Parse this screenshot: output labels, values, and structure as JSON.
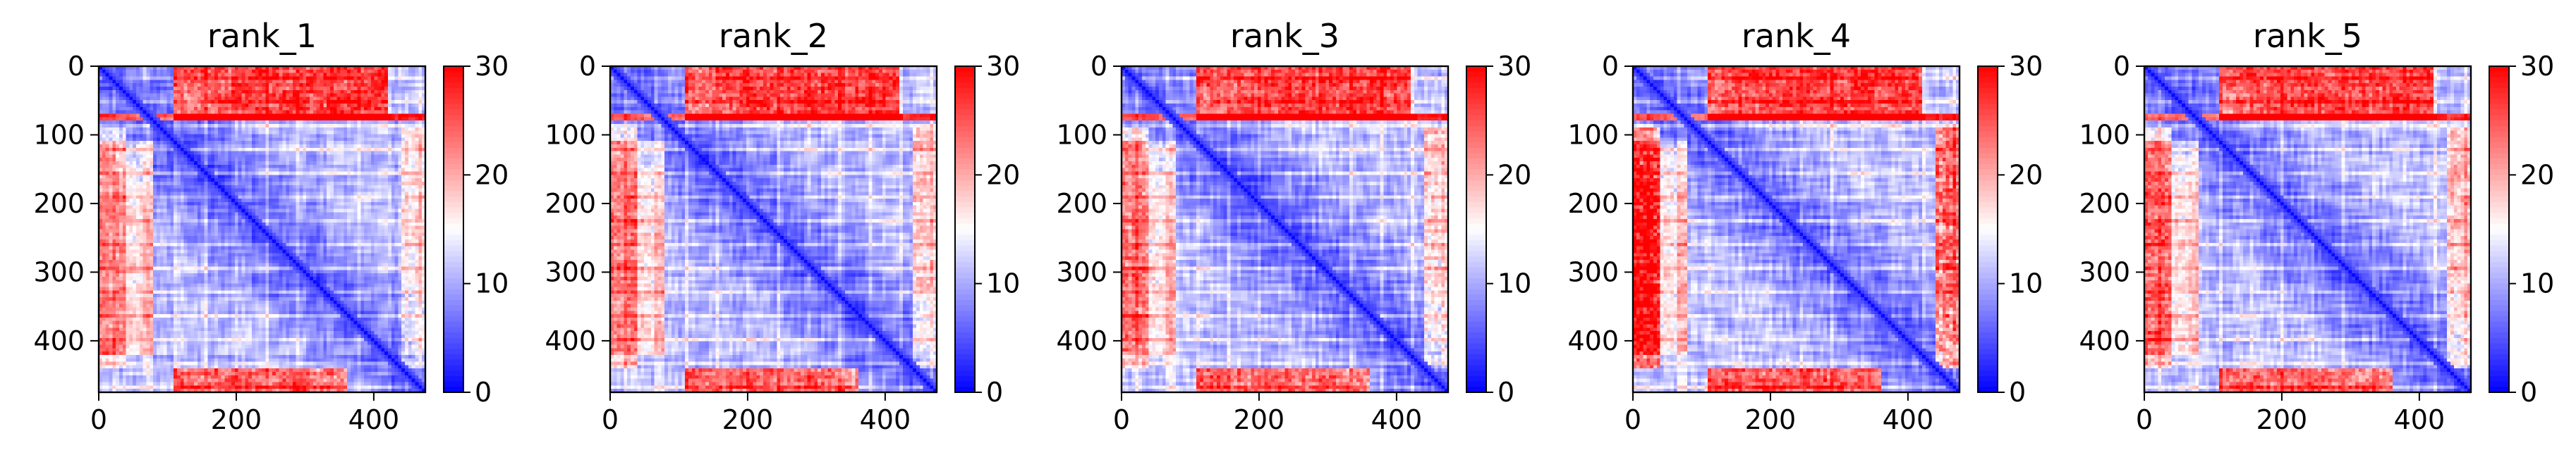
{
  "chart_data": [
    {
      "type": "heatmap",
      "title": "rank_1",
      "n": 475,
      "xlim": [
        0,
        475
      ],
      "ylim": [
        475,
        0
      ],
      "x_ticks": [
        0,
        200,
        400
      ],
      "y_ticks": [
        0,
        100,
        200,
        300,
        400
      ],
      "colorbar": {
        "vmin": 0,
        "vmax": 30,
        "ticks": [
          0,
          10,
          20,
          30
        ],
        "colormap": "bwr"
      },
      "pattern": {
        "terminal_block": [
          0,
          78
        ],
        "high_row_band": 75,
        "bottom_band": [
          440,
          475
        ],
        "side_strength": 0.25
      }
    },
    {
      "type": "heatmap",
      "title": "rank_2",
      "n": 475,
      "xlim": [
        0,
        475
      ],
      "ylim": [
        475,
        0
      ],
      "x_ticks": [
        0,
        200,
        400
      ],
      "y_ticks": [
        0,
        100,
        200,
        300,
        400
      ],
      "colorbar": {
        "vmin": 0,
        "vmax": 30,
        "ticks": [
          0,
          10,
          20,
          30
        ],
        "colormap": "bwr"
      },
      "pattern": {
        "terminal_block": [
          0,
          78
        ],
        "high_row_band": 75,
        "bottom_band": [
          440,
          475
        ],
        "side_strength": 0.3
      }
    },
    {
      "type": "heatmap",
      "title": "rank_3",
      "n": 475,
      "xlim": [
        0,
        475
      ],
      "ylim": [
        475,
        0
      ],
      "x_ticks": [
        0,
        200,
        400
      ],
      "y_ticks": [
        0,
        100,
        200,
        300,
        400
      ],
      "colorbar": {
        "vmin": 0,
        "vmax": 30,
        "ticks": [
          0,
          10,
          20,
          30
        ],
        "colormap": "bwr"
      },
      "pattern": {
        "terminal_block": [
          0,
          78
        ],
        "high_row_band": 75,
        "bottom_band": [
          440,
          475
        ],
        "side_strength": 0.3
      }
    },
    {
      "type": "heatmap",
      "title": "rank_4",
      "n": 475,
      "xlim": [
        0,
        475
      ],
      "ylim": [
        475,
        0
      ],
      "x_ticks": [
        0,
        200,
        400
      ],
      "y_ticks": [
        0,
        100,
        200,
        300,
        400
      ],
      "colorbar": {
        "vmin": 0,
        "vmax": 30,
        "ticks": [
          0,
          10,
          20,
          30
        ],
        "colormap": "bwr"
      },
      "pattern": {
        "terminal_block": [
          0,
          78
        ],
        "high_row_band": 75,
        "bottom_band": [
          440,
          475
        ],
        "side_strength": 0.55
      }
    },
    {
      "type": "heatmap",
      "title": "rank_5",
      "n": 475,
      "xlim": [
        0,
        475
      ],
      "ylim": [
        475,
        0
      ],
      "x_ticks": [
        0,
        200,
        400
      ],
      "y_ticks": [
        0,
        100,
        200,
        300,
        400
      ],
      "colorbar": {
        "vmin": 0,
        "vmax": 30,
        "ticks": [
          0,
          10,
          20,
          30
        ],
        "colormap": "bwr"
      },
      "pattern": {
        "terminal_block": [
          0,
          78
        ],
        "high_row_band": 75,
        "bottom_band": [
          440,
          475
        ],
        "side_strength": 0.35
      }
    }
  ]
}
